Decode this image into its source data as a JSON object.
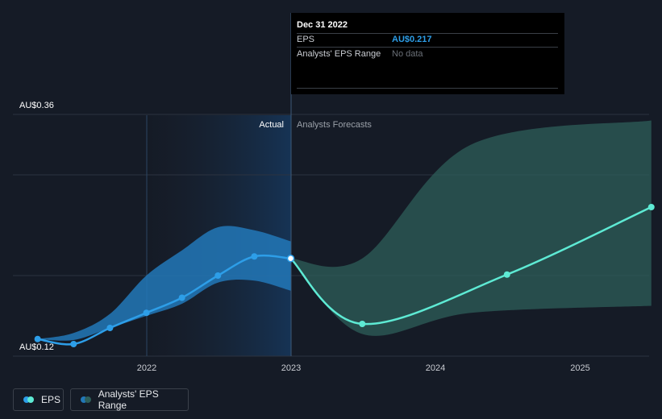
{
  "chart_data": {
    "type": "line",
    "title": "",
    "xlabel": "",
    "ylabel": "",
    "x_ticks": [
      "2022",
      "2023",
      "2024",
      "2025"
    ],
    "y_ticks": [
      "AU$0.36",
      "AU$0.12"
    ],
    "ylim": [
      0.12,
      0.36
    ],
    "actual_label": "Actual",
    "forecast_label": "Analysts Forecasts",
    "series": [
      {
        "name": "EPS",
        "kind": "actual",
        "color": "#2d9ee8",
        "points": [
          {
            "x": "2021-03-31",
            "y": 0.137
          },
          {
            "x": "2021-06-30",
            "y": 0.132
          },
          {
            "x": "2021-09-30",
            "y": 0.148
          },
          {
            "x": "2021-12-31",
            "y": 0.163
          },
          {
            "x": "2022-03-31",
            "y": 0.178
          },
          {
            "x": "2022-06-30",
            "y": 0.2
          },
          {
            "x": "2022-09-30",
            "y": 0.219
          },
          {
            "x": "2022-12-31",
            "y": 0.217
          }
        ]
      },
      {
        "name": "EPS",
        "kind": "forecast",
        "color": "#5eead4",
        "points": [
          {
            "x": "2022-12-31",
            "y": 0.217
          },
          {
            "x": "2023-06-30",
            "y": 0.152
          },
          {
            "x": "2024-06-30",
            "y": 0.201
          },
          {
            "x": "2025-06-30",
            "y": 0.268
          }
        ]
      }
    ],
    "range_actual": {
      "name": "Analysts' EPS Range",
      "color": "#2278b8",
      "points": [
        {
          "x": "2021-03-31",
          "low": 0.137,
          "high": 0.137
        },
        {
          "x": "2021-06-30",
          "low": 0.136,
          "high": 0.143
        },
        {
          "x": "2021-09-30",
          "low": 0.148,
          "high": 0.162
        },
        {
          "x": "2021-12-31",
          "low": 0.16,
          "high": 0.2
        },
        {
          "x": "2022-03-31",
          "low": 0.172,
          "high": 0.225
        },
        {
          "x": "2022-06-30",
          "low": 0.193,
          "high": 0.248
        },
        {
          "x": "2022-09-30",
          "low": 0.195,
          "high": 0.245
        },
        {
          "x": "2022-12-31",
          "low": 0.185,
          "high": 0.234
        }
      ]
    },
    "range_forecast": {
      "name": "Analysts' EPS Range",
      "color": "#2e5f5a",
      "points": [
        {
          "x": "2022-12-31",
          "low": 0.217,
          "high": 0.217
        },
        {
          "x": "2023-06-30",
          "low": 0.142,
          "high": 0.217
        },
        {
          "x": "2024-03-31",
          "low": 0.163,
          "high": 0.33
        },
        {
          "x": "2025-06-30",
          "low": 0.17,
          "high": 0.354
        }
      ]
    },
    "grid": true,
    "legend_position": "bottom-left"
  },
  "tooltip": {
    "date": "Dec 31 2022",
    "eps_label": "EPS",
    "eps_value": "AU$0.217",
    "range_label": "Analysts' EPS Range",
    "range_value": "No data"
  },
  "legend": {
    "eps_label": "EPS",
    "range_label": "Analysts' EPS Range"
  },
  "colors": {
    "background": "#151b26",
    "eps_actual": "#2d9ee8",
    "eps_forecast": "#5eead4",
    "range_actual": "#2278b8",
    "range_forecast": "#2e5f5a",
    "tooltip_value": "#2d9ee8",
    "tooltip_nodata": "#6b7078"
  }
}
